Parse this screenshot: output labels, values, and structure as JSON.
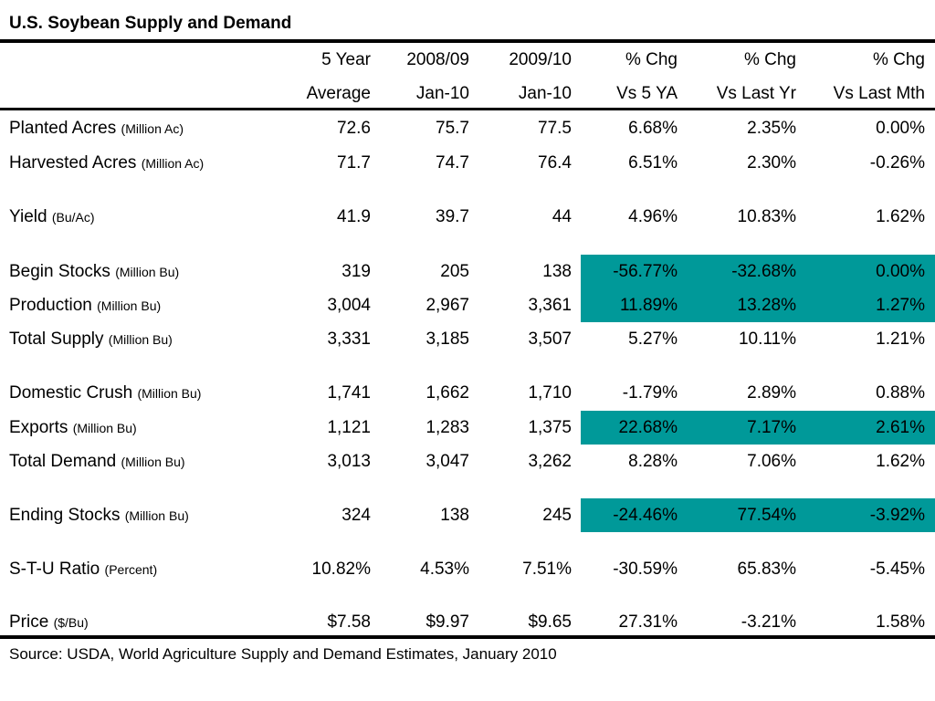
{
  "title": "U.S. Soybean Supply and Demand",
  "headers": {
    "line1": [
      "5 Year",
      "2008/09",
      "2009/10",
      "% Chg",
      "% Chg",
      "% Chg"
    ],
    "line2": [
      "Average",
      "Jan-10",
      "Jan-10",
      "Vs 5 YA",
      "Vs Last Yr",
      "Vs Last Mth"
    ]
  },
  "rows": [
    {
      "label": "Planted Acres",
      "unit": "(Million Ac)",
      "values": [
        "72.6",
        "75.7",
        "77.5",
        "6.68%",
        "2.35%",
        "0.00%"
      ],
      "highlight": false
    },
    {
      "label": "Harvested Acres",
      "unit": "(Million Ac)",
      "values": [
        "71.7",
        "74.7",
        "76.4",
        "6.51%",
        "2.30%",
        "-0.26%"
      ],
      "highlight": false
    },
    {
      "label": "Yield",
      "unit": "(Bu/Ac)",
      "values": [
        "41.9",
        "39.7",
        "44",
        "4.96%",
        "10.83%",
        "1.62%"
      ],
      "highlight": false
    },
    {
      "label": "Begin Stocks",
      "unit": "(Million Bu)",
      "values": [
        "319",
        "205",
        "138",
        "-56.77%",
        "-32.68%",
        "0.00%"
      ],
      "highlight": true
    },
    {
      "label": "Production",
      "unit": "(Million Bu)",
      "values": [
        "3,004",
        "2,967",
        "3,361",
        "11.89%",
        "13.28%",
        "1.27%"
      ],
      "highlight": true
    },
    {
      "label": "Total Supply",
      "unit": "(Million Bu)",
      "values": [
        "3,331",
        "3,185",
        "3,507",
        "5.27%",
        "10.11%",
        "1.21%"
      ],
      "highlight": false
    },
    {
      "label": "Domestic Crush",
      "unit": "(Million Bu)",
      "values": [
        "1,741",
        "1,662",
        "1,710",
        "-1.79%",
        "2.89%",
        "0.88%"
      ],
      "highlight": false
    },
    {
      "label": "Exports",
      "unit": "(Million Bu)",
      "values": [
        "1,121",
        "1,283",
        "1,375",
        "22.68%",
        "7.17%",
        "2.61%"
      ],
      "highlight": true
    },
    {
      "label": "Total Demand",
      "unit": "(Million Bu)",
      "values": [
        "3,013",
        "3,047",
        "3,262",
        "8.28%",
        "7.06%",
        "1.62%"
      ],
      "highlight": false
    },
    {
      "label": "Ending Stocks",
      "unit": "(Million Bu)",
      "values": [
        "324",
        "138",
        "245",
        "-24.46%",
        "77.54%",
        "-3.92%"
      ],
      "highlight": true
    },
    {
      "label": "S-T-U Ratio",
      "unit": "(Percent)",
      "values": [
        "10.82%",
        "4.53%",
        "7.51%",
        "-30.59%",
        "65.83%",
        "-5.45%"
      ],
      "highlight": false
    },
    {
      "label": "Price",
      "unit": "($/Bu)",
      "values": [
        "$7.58",
        "$9.97",
        "$9.65",
        "27.31%",
        "-3.21%",
        "1.58%"
      ],
      "highlight": false
    }
  ],
  "source": "Source: USDA, World Agriculture Supply and Demand Estimates, January 2010",
  "colors": {
    "highlight": "#009999"
  }
}
